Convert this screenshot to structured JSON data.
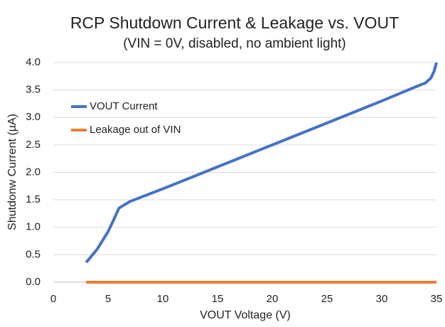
{
  "chart_data": {
    "type": "line",
    "title": "RCP Shutdown Current & Leakage vs. VOUT",
    "subtitle": "(VIN = 0V, disabled, no ambient light)",
    "x_label": "VOUT Voltage (V)",
    "y_label": "Shutdonw Current (µA)",
    "xlim": [
      0,
      35
    ],
    "xticks": [
      0,
      5,
      10,
      15,
      20,
      25,
      30,
      35
    ],
    "ylim": [
      0,
      4
    ],
    "yticks": [
      {
        "value": 0,
        "label": "0.0"
      },
      0.5,
      {
        "value": 1,
        "label": "1.0"
      },
      1.5,
      {
        "value": 2,
        "label": "2.0"
      },
      2.5,
      {
        "value": 3,
        "label": "3.0"
      },
      3.5,
      {
        "value": 4,
        "label": "4.0"
      }
    ],
    "grid": true,
    "legend": "upper-left",
    "series": [
      {
        "name": "VOUT Current",
        "color": "#4472c4",
        "x": [
          3,
          4,
          5,
          5.5,
          6,
          6.5,
          7,
          10,
          15,
          20,
          25,
          30,
          33,
          34,
          34.5,
          34.8,
          35
        ],
        "values": [
          0.36,
          0.6,
          0.92,
          1.13,
          1.35,
          1.41,
          1.47,
          1.7,
          2.1,
          2.5,
          2.9,
          3.3,
          3.55,
          3.63,
          3.72,
          3.85,
          4.0
        ]
      },
      {
        "name": "Leakage out of VIN",
        "color": "#ed7d31",
        "x": [
          3,
          35
        ],
        "values": [
          0,
          0
        ]
      }
    ]
  }
}
